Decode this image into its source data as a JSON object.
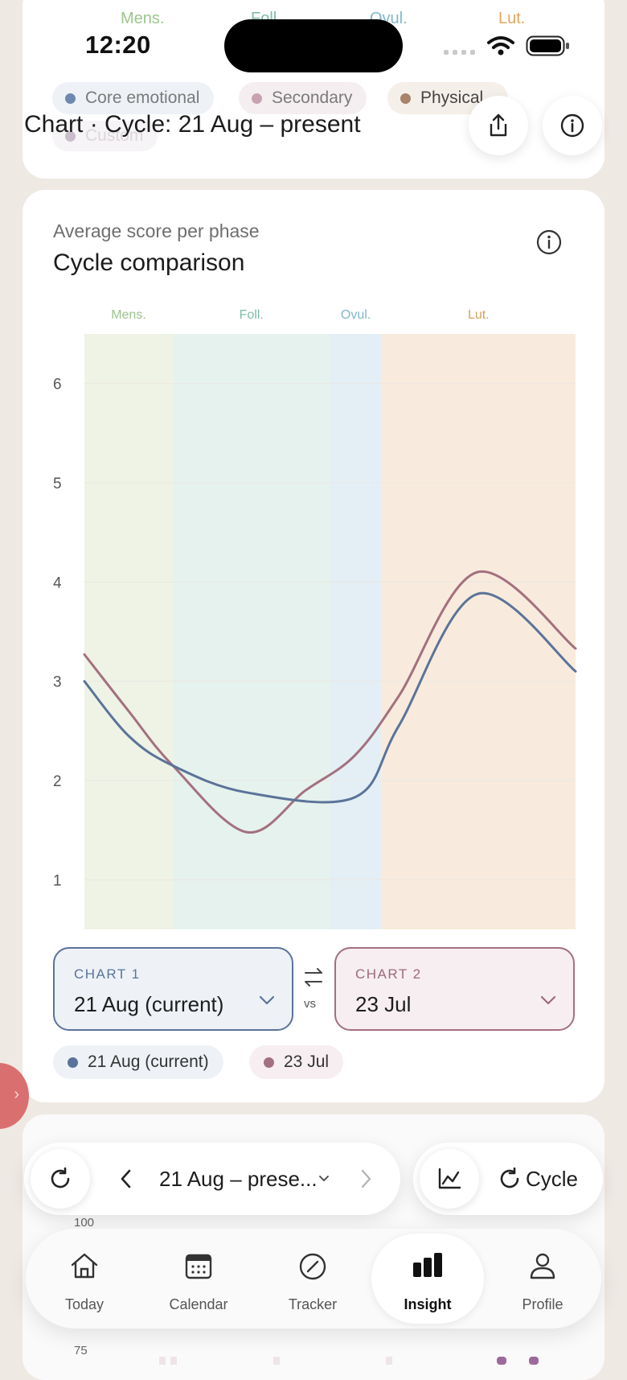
{
  "status_bar": {
    "time": "12:20"
  },
  "top_card": {
    "phase_labels": [
      {
        "label": "Mens.",
        "color": "#9cc58c"
      },
      {
        "label": "Foll.",
        "color": "#7fbcab"
      },
      {
        "label": "Ovul.",
        "color": "#7fb8c9"
      },
      {
        "label": "Lut.",
        "color": "#e0a65e"
      }
    ],
    "chips": [
      {
        "label": "Core emotional",
        "color": "#6f88b0"
      },
      {
        "label": "Secondary",
        "color": "#c9a2b2"
      },
      {
        "label": "Physical",
        "color": "#a8846b"
      },
      {
        "label": "Custom",
        "color": "#b4a2b6"
      }
    ],
    "title": "Chart · Cycle: 21 Aug – present",
    "share_icon": "share-icon",
    "info_icon": "info-icon"
  },
  "comparison": {
    "subtitle": "Average score per phase",
    "title": "Cycle comparison",
    "info_icon": "info-icon",
    "selectors": [
      {
        "caption": "CHART 1",
        "value": "21 Aug (current)",
        "color": "#5b7399"
      },
      {
        "caption": "CHART 2",
        "value": "23 Jul",
        "color": "#9c6a7d"
      }
    ],
    "swap_icon": "swap-arrows-icon",
    "vs_label": "vs",
    "legend": [
      {
        "label": "21 Aug (current)",
        "color": "#5b7399"
      },
      {
        "label": "23 Jul",
        "color": "#a3707f"
      }
    ]
  },
  "chart_data": {
    "type": "line",
    "phases": [
      {
        "label": "Mens.",
        "start": 0,
        "end": 0.18,
        "fill": "#eef3e6",
        "text_color": "#9cc58c"
      },
      {
        "label": "Foll.",
        "start": 0.18,
        "end": 0.5,
        "fill": "#e6f2ed",
        "text_color": "#7fbcab"
      },
      {
        "label": "Ovul.",
        "start": 0.5,
        "end": 0.605,
        "fill": "#e3eff5",
        "text_color": "#7fb8c9"
      },
      {
        "label": "Lut.",
        "start": 0.605,
        "end": 1.0,
        "fill": "#f8ebdd",
        "text_color": "#d6a25f"
      }
    ],
    "yticks": [
      1,
      2,
      3,
      4,
      5,
      6
    ],
    "ylim": [
      0.5,
      6.5
    ],
    "xlim": [
      0,
      1
    ],
    "series": [
      {
        "name": "21 Aug (current)",
        "color": "#5b7399",
        "points": [
          [
            0,
            3.0
          ],
          [
            0.09,
            2.45
          ],
          [
            0.18,
            2.15
          ],
          [
            0.33,
            1.88
          ],
          [
            0.55,
            1.83
          ],
          [
            0.64,
            2.55
          ],
          [
            0.8,
            3.88
          ],
          [
            1.0,
            3.1
          ]
        ]
      },
      {
        "name": "23 Jul",
        "color": "#a3707f",
        "points": [
          [
            0,
            3.27
          ],
          [
            0.09,
            2.7
          ],
          [
            0.18,
            2.15
          ],
          [
            0.33,
            1.48
          ],
          [
            0.45,
            1.9
          ],
          [
            0.55,
            2.25
          ],
          [
            0.64,
            2.85
          ],
          [
            0.8,
            4.1
          ],
          [
            1.0,
            3.33
          ]
        ]
      }
    ]
  },
  "toolbar": {
    "refresh_icon": "refresh-icon",
    "prev_icon": "chevron-left-icon",
    "range": "21 Aug – prese...",
    "next_icon": "chevron-right-icon",
    "chart_icon": "line-chart-icon",
    "cycle_label": "Cycle"
  },
  "lower_chart": {
    "ticks": [
      "100",
      "75"
    ]
  },
  "tabbar": {
    "tabs": [
      {
        "label": "Today",
        "icon": "home-icon"
      },
      {
        "label": "Calendar",
        "icon": "calendar-icon"
      },
      {
        "label": "Tracker",
        "icon": "tracker-icon"
      },
      {
        "label": "Insight",
        "icon": "bar-chart-icon",
        "active": true
      },
      {
        "label": "Profile",
        "icon": "profile-icon"
      }
    ]
  }
}
